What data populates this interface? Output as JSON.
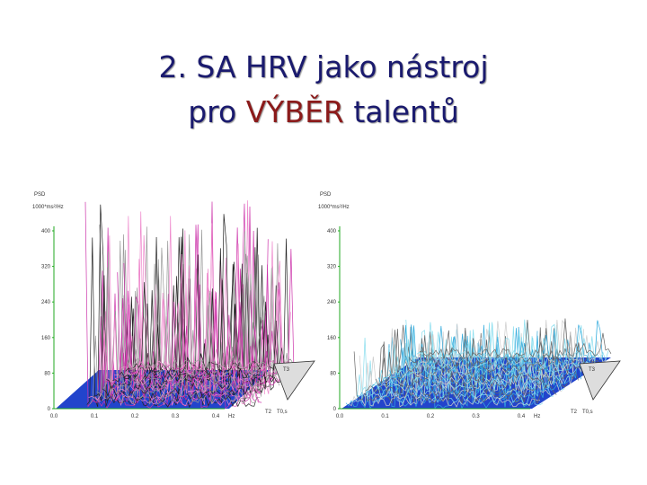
{
  "title": {
    "line1": "2. SA HRV jako nástroj",
    "line2": {
      "before": "pro",
      "highlight": "VÝBĚR",
      "after": "talentů"
    }
  },
  "panels": [
    {
      "y_label": "PSD",
      "y_unit": "1000*ms²/Hz",
      "yticks": [
        "0",
        "80",
        "160",
        "240",
        "320",
        "400"
      ],
      "xticks": [
        "0.0",
        "0.1",
        "0.2",
        "0.3",
        "0.4"
      ],
      "x_unit": "Hz",
      "depth_labels": [
        "T3",
        "T2",
        "T0,s"
      ]
    },
    {
      "y_label": "PSD",
      "y_unit": "1000*ms²/Hz",
      "yticks": [
        "0",
        "80",
        "160",
        "240",
        "320",
        "400"
      ],
      "xticks": [
        "0.0",
        "0.1",
        "0.2",
        "0.3",
        "0.4"
      ],
      "x_unit": "Hz",
      "depth_labels": [
        "T3",
        "T2",
        "T0,s"
      ]
    }
  ]
}
